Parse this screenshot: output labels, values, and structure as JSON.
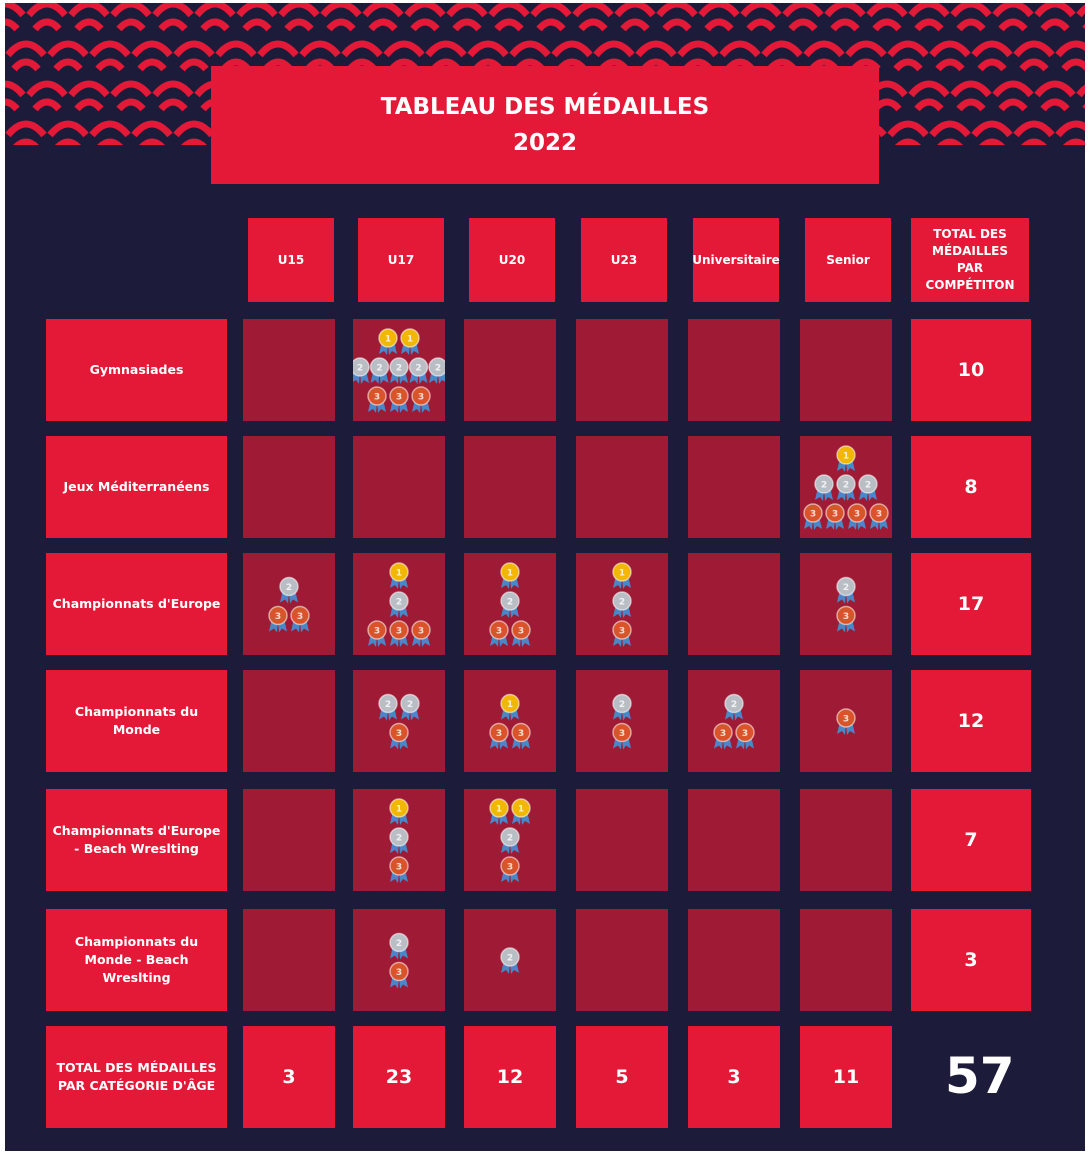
{
  "header": {
    "title_line1": "TABLEAU DES MÉDAILLES",
    "title_line2": "2022"
  },
  "columns": [
    "U15",
    "U17",
    "U20",
    "U23",
    "Universitaire",
    "Senior"
  ],
  "total_column_label": "TOTAL DES MÉDAILLES PAR COMPÉTITON",
  "total_row_label": "TOTAL DES MÉDAILLES PAR CATÉGORIE D'ÂGE",
  "colors": {
    "background": "#1c1c3a",
    "accent": "#e31937",
    "cell": "#9e1a35",
    "gold": "#f2b705",
    "silver": "#b9bdc4",
    "bronze": "#d9542b",
    "ribbon": "#4a86c8"
  },
  "chart_data": {
    "type": "table",
    "title": "TABLEAU DES MÉDAILLES 2022",
    "columns": [
      "U15",
      "U17",
      "U20",
      "U23",
      "Universitaire",
      "Senior"
    ],
    "rows": [
      {
        "competition": "Gymnasiades",
        "cells": [
          [
            0,
            0,
            0
          ],
          [
            2,
            5,
            3
          ],
          [
            0,
            0,
            0
          ],
          [
            0,
            0,
            0
          ],
          [
            0,
            0,
            0
          ],
          [
            0,
            0,
            0
          ]
        ],
        "total": "10"
      },
      {
        "competition": "Jeux Méditerranéens",
        "cells": [
          [
            0,
            0,
            0
          ],
          [
            0,
            0,
            0
          ],
          [
            0,
            0,
            0
          ],
          [
            0,
            0,
            0
          ],
          [
            0,
            0,
            0
          ],
          [
            1,
            3,
            4
          ]
        ],
        "total": "8"
      },
      {
        "competition": "Championnats d'Europe",
        "cells": [
          [
            0,
            1,
            2
          ],
          [
            1,
            1,
            3
          ],
          [
            1,
            1,
            2
          ],
          [
            1,
            1,
            1
          ],
          [
            0,
            0,
            0
          ],
          [
            0,
            1,
            1
          ]
        ],
        "total": "17"
      },
      {
        "competition": "Championnats du Monde",
        "cells": [
          [
            0,
            0,
            0
          ],
          [
            0,
            2,
            1
          ],
          [
            1,
            0,
            2
          ],
          [
            0,
            1,
            1
          ],
          [
            0,
            1,
            2
          ],
          [
            0,
            0,
            1
          ]
        ],
        "total": "12"
      },
      {
        "competition": "Championnats d'Europe - Beach Wreslting",
        "cells": [
          [
            0,
            0,
            0
          ],
          [
            1,
            1,
            1
          ],
          [
            2,
            1,
            1
          ],
          [
            0,
            0,
            0
          ],
          [
            0,
            0,
            0
          ],
          [
            0,
            0,
            0
          ]
        ],
        "total": "7"
      },
      {
        "competition": "Championnats du Monde - Beach Wreslting",
        "cells": [
          [
            0,
            0,
            0
          ],
          [
            0,
            1,
            1
          ],
          [
            0,
            1,
            0
          ],
          [
            0,
            0,
            0
          ],
          [
            0,
            0,
            0
          ],
          [
            0,
            0,
            0
          ]
        ],
        "total": "3"
      }
    ],
    "column_totals": [
      "3",
      "23",
      "12",
      "5",
      "3",
      "11"
    ],
    "grand_total": "57",
    "medal_labels": {
      "gold": "1",
      "silver": "2",
      "bronze": "3"
    }
  }
}
